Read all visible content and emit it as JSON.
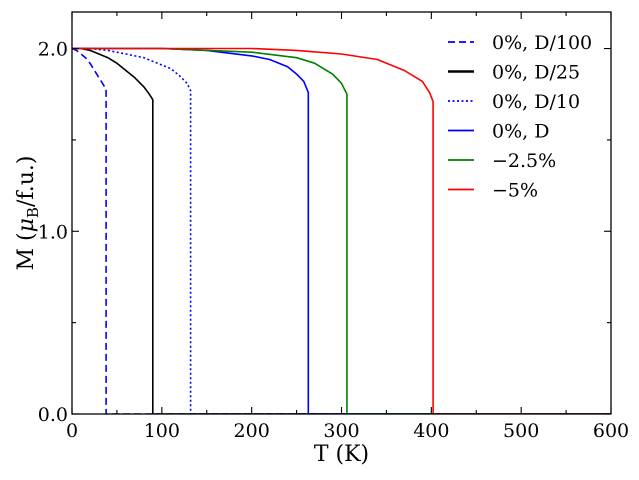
{
  "chart_data": {
    "type": "line",
    "title": "",
    "xlabel": "T (K)",
    "ylabel": "M (μB/f.u.)",
    "ylabel_parts": {
      "prefix": "M (",
      "symbol": "μ",
      "subscript": "B",
      "suffix": "/f.u.)"
    },
    "xlim": [
      0,
      600
    ],
    "ylim": [
      0.0,
      2.2
    ],
    "xticks": [
      0,
      100,
      200,
      300,
      400,
      500,
      600
    ],
    "xtick_labels": [
      "0",
      "100",
      "200",
      "300",
      "400",
      "500",
      "600"
    ],
    "yticks": [
      0.0,
      1.0,
      2.0
    ],
    "ytick_labels": [
      "0.0",
      "1.0",
      "2.0"
    ],
    "grid": false,
    "legend_position": "top-right",
    "series": [
      {
        "name": "0%, D/100",
        "color": "#0000ff",
        "dash": "dashed",
        "Tc": 38,
        "M0": 2.0,
        "Mc": 1.78,
        "x": [
          0,
          5,
          10,
          15,
          20,
          25,
          30,
          34,
          37,
          38,
          38,
          40,
          600
        ],
        "y": [
          2.0,
          1.99,
          1.97,
          1.95,
          1.92,
          1.88,
          1.84,
          1.81,
          1.785,
          1.78,
          0.0,
          0.0,
          0.0
        ]
      },
      {
        "name": "0%, D/25",
        "color": "#000000",
        "dash": "solid",
        "Tc": 90,
        "M0": 2.0,
        "Mc": 1.72,
        "x": [
          0,
          10,
          20,
          30,
          40,
          50,
          60,
          70,
          80,
          86,
          90,
          90,
          600
        ],
        "y": [
          2.0,
          2.0,
          1.99,
          1.97,
          1.95,
          1.92,
          1.88,
          1.84,
          1.79,
          1.75,
          1.72,
          0.0,
          0.0
        ]
      },
      {
        "name": "0%, D/10",
        "color": "#0000ff",
        "dash": "dotted",
        "Tc": 132,
        "M0": 2.0,
        "Mc": 1.77,
        "x": [
          0,
          20,
          40,
          60,
          80,
          100,
          110,
          120,
          128,
          132,
          132,
          600
        ],
        "y": [
          2.0,
          2.0,
          1.99,
          1.97,
          1.95,
          1.91,
          1.89,
          1.85,
          1.81,
          1.77,
          0.0,
          0.0
        ]
      },
      {
        "name": "0%, D",
        "color": "#0000ff",
        "dash": "solid",
        "Tc": 263,
        "M0": 2.0,
        "Mc": 1.76,
        "x": [
          0,
          100,
          150,
          200,
          220,
          240,
          250,
          258,
          263,
          263,
          600
        ],
        "y": [
          2.0,
          2.0,
          1.99,
          1.96,
          1.94,
          1.9,
          1.86,
          1.82,
          1.76,
          0.0,
          0.0
        ]
      },
      {
        "name": "−2.5%",
        "color": "#008000",
        "dash": "solid",
        "Tc": 306,
        "M0": 2.0,
        "Mc": 1.75,
        "x": [
          0,
          100,
          200,
          250,
          270,
          290,
          300,
          306,
          306,
          600
        ],
        "y": [
          2.0,
          2.0,
          1.98,
          1.95,
          1.92,
          1.86,
          1.81,
          1.75,
          0.0,
          0.0
        ]
      },
      {
        "name": "−5%",
        "color": "#ff0000",
        "dash": "solid",
        "Tc": 402,
        "M0": 2.0,
        "Mc": 1.71,
        "x": [
          0,
          100,
          200,
          250,
          300,
          340,
          370,
          390,
          398,
          402,
          402,
          600
        ],
        "y": [
          2.0,
          2.0,
          2.0,
          1.99,
          1.97,
          1.94,
          1.88,
          1.82,
          1.76,
          1.71,
          0.0,
          0.0
        ]
      }
    ]
  }
}
